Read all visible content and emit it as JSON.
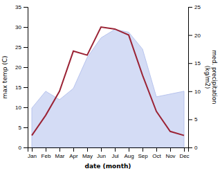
{
  "chart_data": {
    "type": "line",
    "x_label": "date (month)",
    "y_label": "max temp (C)",
    "y2_label": "med. precipitation\n(kg/m2)",
    "categories": [
      "Jan",
      "Feb",
      "Mar",
      "Apr",
      "May",
      "Jun",
      "Jul",
      "Aug",
      "Sep",
      "Oct",
      "Nov",
      "Dec"
    ],
    "series": [
      {
        "type": "area",
        "axis": "y2",
        "color": "#b8c4ee",
        "values": [
          7,
          10,
          8.5,
          10.5,
          16,
          19.5,
          21,
          20.5,
          17.5,
          9,
          9.5,
          10
        ]
      },
      {
        "type": "line",
        "color": "#9b2335",
        "values": [
          3,
          8,
          14,
          24,
          23,
          30,
          29.5,
          28,
          18,
          9,
          4,
          3
        ]
      }
    ],
    "ylim": [
      0,
      35
    ],
    "yticks": [
      0,
      5,
      10,
      15,
      20,
      25,
      30,
      35
    ],
    "y2lim": [
      0,
      25
    ],
    "y2ticks": [
      0,
      5,
      10,
      15,
      20,
      25
    ],
    "grid": false
  }
}
